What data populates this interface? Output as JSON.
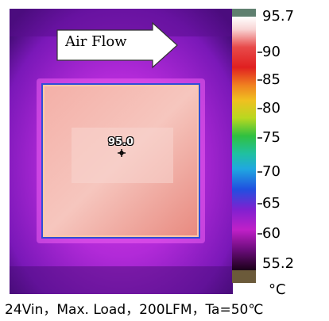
{
  "figure": {
    "arrow_label": "Air Flow",
    "hotspot_reading": "95.0",
    "marker_icon": "crosshair-icon"
  },
  "scale": {
    "labels": [
      "95.7",
      "90",
      "85",
      "80",
      "75",
      "70",
      "65",
      "60",
      "55.2"
    ],
    "unit": "°C",
    "max": 95.7,
    "min": 55.2
  },
  "caption": "24Vin，Max. Load，200LFM，Ta=50℃"
}
